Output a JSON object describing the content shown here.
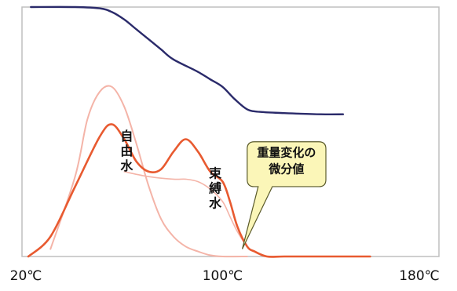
{
  "chart_data": {
    "type": "line",
    "x_axis": {
      "ticks": [
        20,
        100,
        180
      ],
      "tick_labels": [
        "20℃",
        "100℃",
        "180℃"
      ],
      "unit": "℃",
      "xlim": [
        20,
        180
      ]
    },
    "ylim": [
      0,
      100
    ],
    "grid": false,
    "legend": "none",
    "colors": {
      "weight": "#2a2a6a",
      "derivative": "#e85a30",
      "component": "#f4b4a8",
      "callout_fill": "#fbf6b8",
      "callout_stroke": "#5a5a2a",
      "frame": "#bfbfbf"
    },
    "series": [
      {
        "id": "weight",
        "x": [
          22,
          40,
          50,
          55,
          60,
          65,
          70,
          75,
          80,
          90,
          95,
          100,
          105,
          110,
          115,
          125,
          140,
          149
        ],
        "y": [
          100,
          100,
          99.5,
          98,
          95,
          91,
          87,
          83,
          79,
          74,
          71,
          68,
          63,
          59,
          58,
          57.5,
          57,
          57
        ]
      },
      {
        "id": "derivative",
        "x": [
          21,
          30,
          40,
          50,
          55,
          60,
          65,
          70,
          75,
          80,
          85,
          90,
          95,
          100,
          103,
          106,
          110,
          113,
          118,
          125,
          140,
          160
        ],
        "y": [
          0,
          8,
          28,
          48,
          53,
          47,
          38,
          34,
          35,
          42,
          47,
          42,
          34,
          30,
          22,
          12,
          4,
          2,
          0,
          0,
          0,
          0
        ]
      },
      {
        "id": "free-water",
        "x": [
          30,
          40,
          45,
          50,
          55,
          60,
          65,
          70,
          75,
          80,
          85,
          90,
          95,
          100,
          110
        ],
        "y": [
          3,
          32,
          55,
          66,
          68,
          60,
          45,
          28,
          15,
          8,
          4,
          2,
          0.5,
          0,
          0
        ]
      },
      {
        "id": "bound-water",
        "x": [
          60,
          70,
          80,
          85,
          90,
          95,
          100,
          103,
          106,
          110,
          113,
          118
        ],
        "y": [
          34,
          32,
          31,
          31,
          30,
          27,
          22,
          16,
          10,
          4,
          2,
          0
        ]
      }
    ],
    "annotations": [
      {
        "id": "free-water-label",
        "text": "自由水",
        "x": 61,
        "y": 42,
        "vertical": true
      },
      {
        "id": "bound-water-label",
        "text": "束縛水",
        "x": 97,
        "y": 27,
        "vertical": true
      }
    ],
    "callout": {
      "lines": [
        "重量変化の",
        "微分値"
      ],
      "box": {
        "x": [
          110,
          142
        ],
        "y": [
          28,
          46
        ]
      },
      "pointer_tip": {
        "x": 108,
        "y": 3
      }
    }
  }
}
